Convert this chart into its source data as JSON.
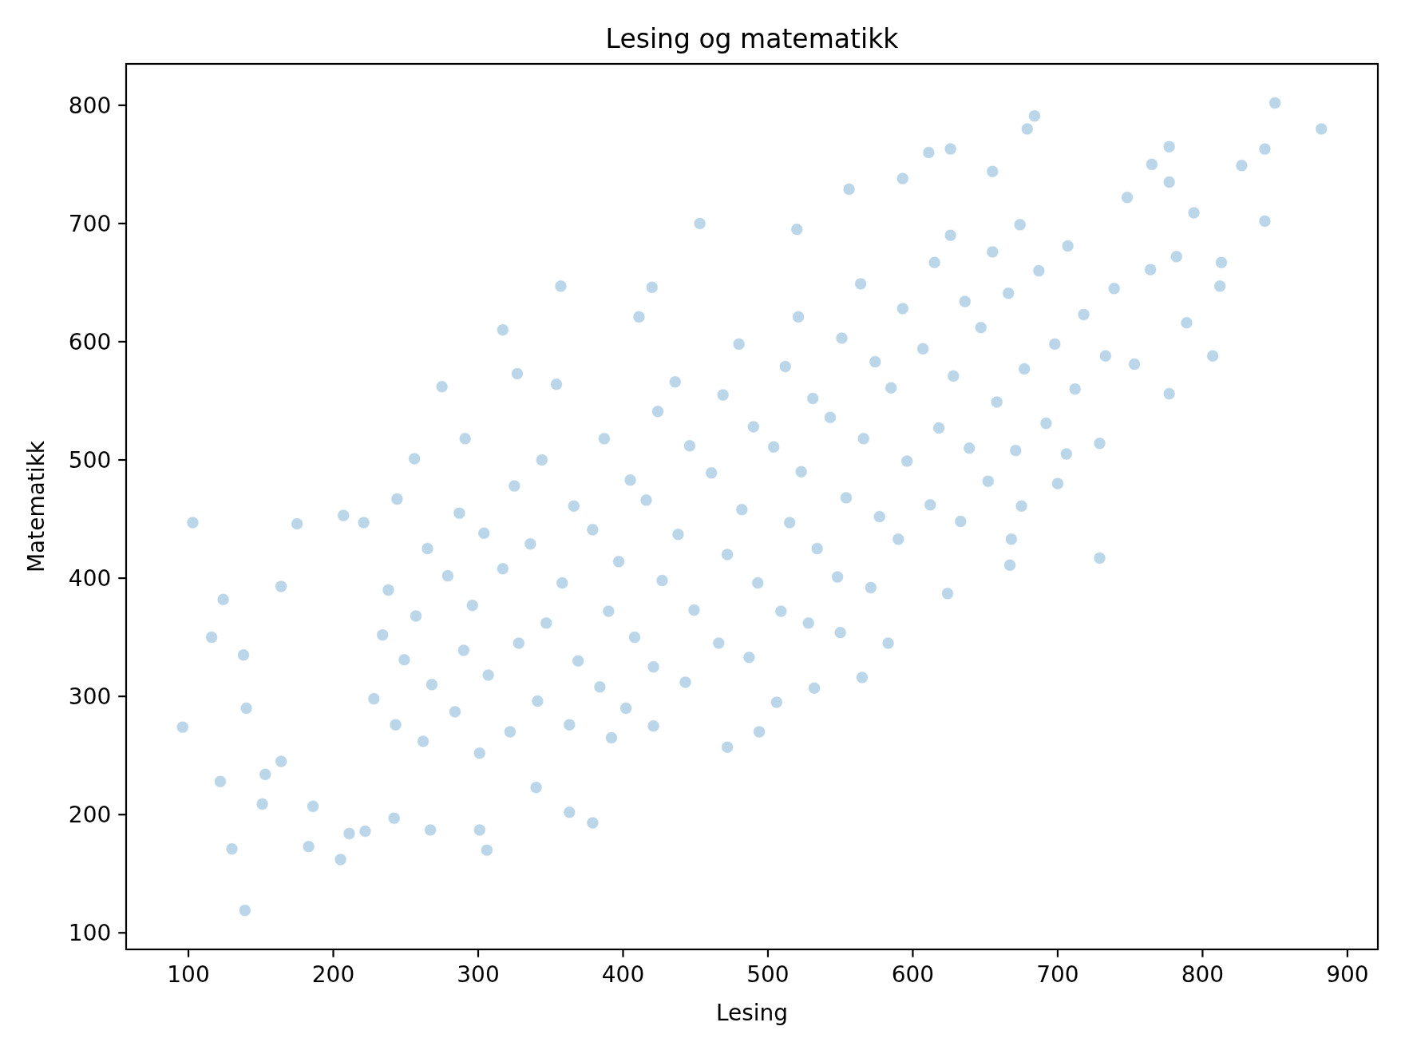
{
  "chart_data": {
    "type": "scatter",
    "title": "Lesing og matematikk",
    "xlabel": "Lesing",
    "ylabel": "Matematikk",
    "xlim": [
      57,
      921
    ],
    "ylim": [
      86,
      835
    ],
    "xticks": [
      100,
      200,
      300,
      400,
      500,
      600,
      700,
      800,
      900
    ],
    "yticks": [
      100,
      200,
      300,
      400,
      500,
      600,
      700,
      800
    ],
    "marker": "circle",
    "series": [
      {
        "color": "#1f77b4",
        "x": [
          103,
          124,
          116,
          96,
          139,
          130,
          122,
          140,
          138,
          153,
          151,
          164,
          164,
          175,
          186,
          183,
          205,
          211,
          222,
          242,
          267,
          301,
          306,
          363,
          379,
          207,
          221,
          340,
          850,
          882,
          843,
          843,
          827,
          777,
          765,
          777,
          794,
          748,
          813,
          812,
          782,
          789,
          807,
          777,
          729,
          729,
          700,
          684,
          679,
          611,
          626,
          655,
          667,
          764,
          753,
          706,
          453,
          357,
          317,
          275,
          327,
          420,
          593,
          556,
          520,
          411,
          354,
          256,
          291,
          244,
          472,
          494,
          506,
          532,
          565,
          583,
          550,
          624,
          668,
          675,
          421,
          392,
          228,
          234,
          243,
          249,
          238,
          262,
          268,
          257,
          265,
          284,
          290,
          279,
          287,
          301,
          307,
          296,
          304,
          322,
          328,
          317,
          325,
          341,
          347,
          336,
          344,
          363,
          369,
          358,
          366,
          384,
          390,
          379,
          387,
          402,
          408,
          397,
          405,
          421,
          427,
          416,
          424,
          443,
          449,
          438,
          446,
          436,
          466,
          472,
          461,
          469,
          487,
          493,
          482,
          490,
          480,
          509,
          515,
          504,
          512,
          528,
          534,
          523,
          531,
          521,
          548,
          554,
          543,
          551,
          571,
          577,
          566,
          574,
          564,
          590,
          596,
          585,
          593,
          612,
          618,
          607,
          615,
          633,
          639,
          628,
          636,
          626,
          652,
          658,
          647,
          655,
          671,
          677,
          666,
          674,
          692,
          698,
          687,
          712,
          718,
          707,
          733,
          739
        ],
        "values": [
          447,
          382,
          350,
          274,
          119,
          171,
          228,
          290,
          335,
          234,
          209,
          245,
          393,
          446,
          207,
          173,
          162,
          184,
          186,
          197,
          187,
          187,
          170,
          202,
          193,
          453,
          447,
          223,
          802,
          780,
          763,
          702,
          749,
          765,
          750,
          735,
          709,
          722,
          667,
          647,
          672,
          616,
          588,
          556,
          514,
          417,
          480,
          791,
          780,
          760,
          763,
          744,
          411,
          661,
          581,
          505,
          700,
          647,
          610,
          562,
          573,
          646,
          738,
          729,
          695,
          621,
          564,
          501,
          518,
          467,
          257,
          270,
          295,
          307,
          316,
          345,
          354,
          387,
          433,
          461,
          275,
          265,
          298,
          352,
          276,
          331,
          390,
          262,
          310,
          368,
          425,
          287,
          339,
          402,
          455,
          252,
          318,
          377,
          438,
          270,
          345,
          408,
          478,
          296,
          362,
          429,
          500,
          276,
          330,
          396,
          461,
          308,
          372,
          441,
          518,
          290,
          350,
          414,
          483,
          325,
          398,
          466,
          541,
          312,
          373,
          437,
          512,
          566,
          345,
          420,
          489,
          555,
          333,
          396,
          458,
          528,
          598,
          372,
          447,
          511,
          579,
          362,
          425,
          490,
          552,
          621,
          401,
          468,
          536,
          603,
          392,
          452,
          518,
          583,
          649,
          433,
          499,
          561,
          628,
          462,
          527,
          594,
          667,
          448,
          510,
          571,
          634,
          690,
          482,
          549,
          612,
          676,
          508,
          577,
          641,
          699,
          531,
          598,
          660,
          560,
          623,
          681,
          588,
          645
        ]
      }
    ]
  }
}
